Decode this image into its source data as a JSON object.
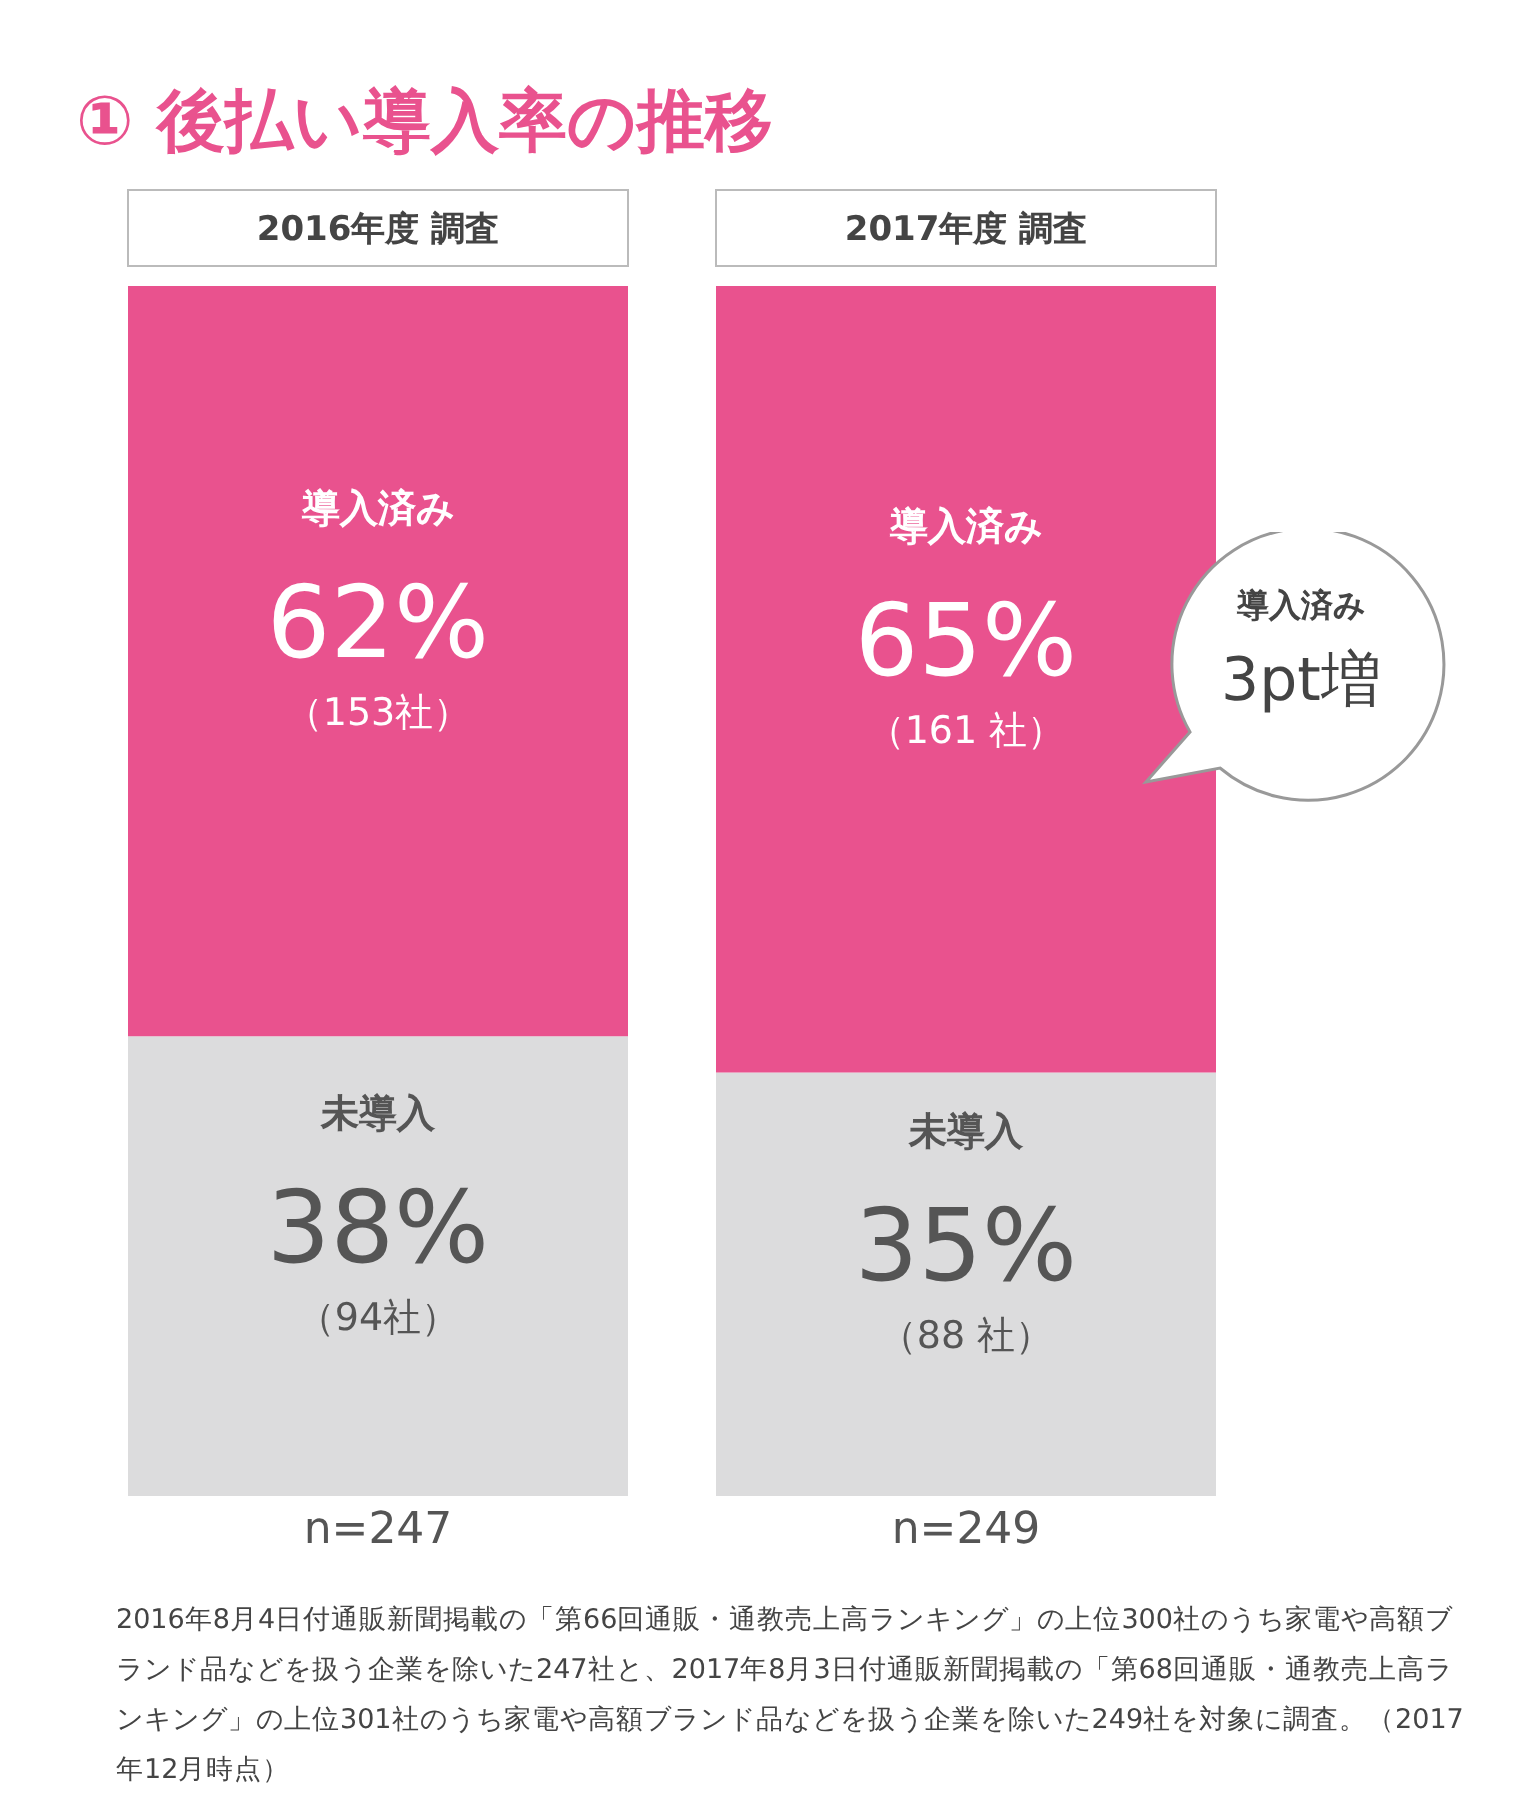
{
  "chart_data": {
    "type": "bar",
    "title": "① 後払い導入率の推移",
    "categories": [
      "2016年度 調査",
      "2017年度 調査"
    ],
    "stacked": true,
    "legend": false,
    "grid": false,
    "series": [
      {
        "name": "未導入",
        "color": "#dcdcdd",
        "values": [
          38,
          35
        ],
        "value_labels": [
          "38%",
          "35%"
        ]
      },
      {
        "name": "導入済み",
        "color": "#e9528e",
        "values": [
          62,
          65
        ],
        "value_labels": [
          "62%",
          "65%"
        ]
      }
    ],
    "annotations": [
      "（94社）",
      "（88 社）",
      "（153社）",
      "（161 社）",
      "n=247",
      "n=249",
      "導入済み 3pt増",
      "2016年8月4日付通販新聞掲載の「第66回通販・通教売上高ランキング」の上位300社のうち家電や高額ブランド品などを扱う企業を除いた247社と、2017年8月3日付通販新聞掲載の「第68回通販・通教売上高ランキング」の上位301社のうち家電や高額ブランド品などを扱う企業を除いた249社を対象に調査。（2017年12月時点）"
    ]
  }
}
